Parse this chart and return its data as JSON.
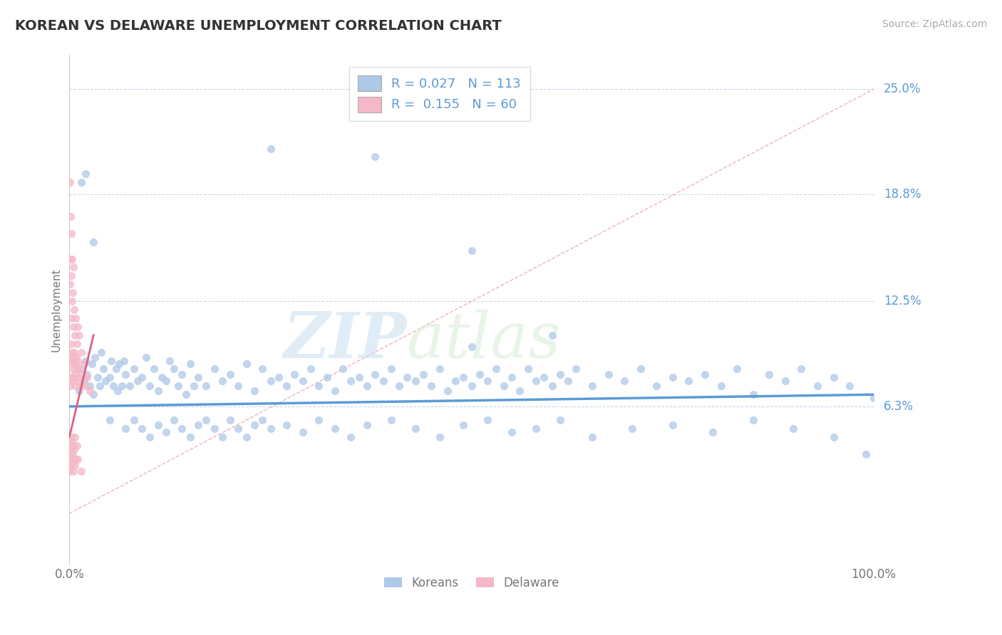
{
  "title": "KOREAN VS DELAWARE UNEMPLOYMENT CORRELATION CHART",
  "source_text": "Source: ZipAtlas.com",
  "ylabel": "Unemployment",
  "watermark_zip": "ZIP",
  "watermark_atlas": "atlas",
  "xlim": [
    0,
    100
  ],
  "ylim": [
    -3,
    27
  ],
  "x_ticks": [
    0,
    100
  ],
  "x_tick_labels": [
    "0.0%",
    "100.0%"
  ],
  "y_ticks": [
    6.3,
    12.5,
    18.8,
    25.0
  ],
  "y_tick_labels": [
    "6.3%",
    "12.5%",
    "18.8%",
    "25.0%"
  ],
  "grid_color": "#c8d8e8",
  "blue_color": "#5b9bd5",
  "pink_color": "#f4a0b0",
  "blue_scatter_color": "#aec8e8",
  "pink_scatter_color": "#f4b8c8",
  "ref_line_color": "#e8a0b0",
  "legend_blue_R": "0.027",
  "legend_blue_N": "113",
  "legend_pink_R": "0.155",
  "legend_pink_N": "60",
  "koreans_x": [
    1.2,
    1.5,
    1.8,
    2.0,
    2.2,
    2.5,
    2.8,
    3.0,
    3.2,
    3.5,
    3.8,
    4.0,
    4.2,
    4.5,
    5.0,
    5.2,
    5.5,
    5.8,
    6.0,
    6.2,
    6.5,
    6.8,
    7.0,
    7.5,
    8.0,
    8.5,
    9.0,
    9.5,
    10.0,
    10.5,
    11.0,
    11.5,
    12.0,
    12.5,
    13.0,
    13.5,
    14.0,
    14.5,
    15.0,
    15.5,
    16.0,
    17.0,
    18.0,
    19.0,
    20.0,
    21.0,
    22.0,
    23.0,
    24.0,
    25.0,
    26.0,
    27.0,
    28.0,
    29.0,
    30.0,
    31.0,
    32.0,
    33.0,
    34.0,
    35.0,
    36.0,
    37.0,
    38.0,
    39.0,
    40.0,
    41.0,
    42.0,
    43.0,
    44.0,
    45.0,
    46.0,
    47.0,
    48.0,
    49.0,
    50.0,
    51.0,
    52.0,
    53.0,
    54.0,
    55.0,
    56.0,
    57.0,
    58.0,
    59.0,
    60.0,
    61.0,
    62.0,
    63.0,
    65.0,
    67.0,
    69.0,
    71.0,
    73.0,
    75.0,
    77.0,
    79.0,
    81.0,
    83.0,
    85.0,
    87.0,
    89.0,
    91.0,
    93.0,
    95.0,
    97.0,
    99.0,
    100.0,
    25.0,
    38.0,
    50.0,
    1.5,
    2.0,
    3.0
  ],
  "koreans_y": [
    7.2,
    8.5,
    7.8,
    9.0,
    8.2,
    7.5,
    8.8,
    7.0,
    9.2,
    8.0,
    7.5,
    9.5,
    8.5,
    7.8,
    8.0,
    9.0,
    7.5,
    8.5,
    7.2,
    8.8,
    7.5,
    9.0,
    8.2,
    7.5,
    8.5,
    7.8,
    8.0,
    9.2,
    7.5,
    8.5,
    7.2,
    8.0,
    7.8,
    9.0,
    8.5,
    7.5,
    8.2,
    7.0,
    8.8,
    7.5,
    8.0,
    7.5,
    8.5,
    7.8,
    8.2,
    7.5,
    8.8,
    7.2,
    8.5,
    7.8,
    8.0,
    7.5,
    8.2,
    7.8,
    8.5,
    7.5,
    8.0,
    7.2,
    8.5,
    7.8,
    8.0,
    7.5,
    8.2,
    7.8,
    8.5,
    7.5,
    8.0,
    7.8,
    8.2,
    7.5,
    8.5,
    7.2,
    7.8,
    8.0,
    7.5,
    8.2,
    7.8,
    8.5,
    7.5,
    8.0,
    7.2,
    8.5,
    7.8,
    8.0,
    7.5,
    8.2,
    7.8,
    8.5,
    7.5,
    8.2,
    7.8,
    8.5,
    7.5,
    8.0,
    7.8,
    8.2,
    7.5,
    8.5,
    7.0,
    8.2,
    7.8,
    8.5,
    7.5,
    8.0,
    7.5,
    3.5,
    6.8,
    21.5,
    21.0,
    15.5,
    19.5,
    20.0,
    16.0
  ],
  "koreans_low_x": [
    5.0,
    7.0,
    8.0,
    9.0,
    10.0,
    11.0,
    12.0,
    13.0,
    14.0,
    15.0,
    16.0,
    17.0,
    18.0,
    19.0,
    20.0,
    21.0,
    22.0,
    23.0,
    24.0,
    25.0,
    27.0,
    29.0,
    31.0,
    33.0,
    35.0,
    37.0,
    40.0,
    43.0,
    46.0,
    49.0,
    52.0,
    55.0,
    58.0,
    61.0,
    65.0,
    70.0,
    75.0,
    80.0,
    85.0,
    90.0,
    95.0,
    50.0,
    60.0
  ],
  "koreans_low_y": [
    5.5,
    5.0,
    5.5,
    5.0,
    4.5,
    5.2,
    4.8,
    5.5,
    5.0,
    4.5,
    5.2,
    5.5,
    5.0,
    4.5,
    5.5,
    5.0,
    4.5,
    5.2,
    5.5,
    5.0,
    5.2,
    4.8,
    5.5,
    5.0,
    4.5,
    5.2,
    5.5,
    5.0,
    4.5,
    5.2,
    5.5,
    4.8,
    5.0,
    5.5,
    4.5,
    5.0,
    5.2,
    4.8,
    5.5,
    5.0,
    4.5,
    9.8,
    10.5
  ],
  "delaware_x": [
    0.1,
    0.15,
    0.2,
    0.25,
    0.3,
    0.35,
    0.4,
    0.45,
    0.5,
    0.55,
    0.6,
    0.65,
    0.7,
    0.75,
    0.8,
    0.85,
    0.9,
    0.95,
    1.0,
    1.1,
    1.2,
    1.4,
    1.6,
    1.8,
    2.0,
    2.2,
    2.5,
    0.1,
    0.15,
    0.2,
    0.25,
    0.3,
    0.35,
    0.4,
    0.5,
    0.6,
    0.7,
    0.8,
    0.9,
    0.1,
    0.2,
    0.3,
    0.5,
    0.7,
    1.0,
    1.5,
    0.1,
    0.2,
    0.15,
    0.25,
    0.3,
    0.4,
    0.5,
    0.6,
    0.7,
    0.8,
    0.9,
    1.0,
    1.2,
    1.5
  ],
  "delaware_y": [
    7.5,
    8.0,
    9.0,
    10.0,
    8.5,
    9.5,
    7.8,
    9.2,
    8.0,
    8.8,
    9.5,
    8.2,
    9.0,
    7.5,
    8.8,
    9.2,
    8.5,
    7.8,
    9.0,
    8.5,
    8.0,
    7.5,
    8.2,
    8.8,
    7.5,
    8.0,
    7.2,
    3.5,
    4.0,
    3.8,
    4.5,
    3.2,
    4.2,
    3.5,
    4.0,
    3.8,
    4.5,
    3.2,
    4.0,
    2.5,
    2.8,
    3.0,
    2.5,
    2.8,
    3.2,
    2.5,
    13.5,
    14.0,
    15.0,
    11.5,
    12.5,
    13.0,
    11.0,
    12.0,
    10.5,
    11.5,
    10.0,
    11.0,
    10.5,
    9.5
  ],
  "delaware_high": [
    [
      0.1,
      19.5
    ],
    [
      0.15,
      17.5
    ],
    [
      0.2,
      16.5
    ],
    [
      0.3,
      15.0
    ],
    [
      0.5,
      14.5
    ]
  ]
}
